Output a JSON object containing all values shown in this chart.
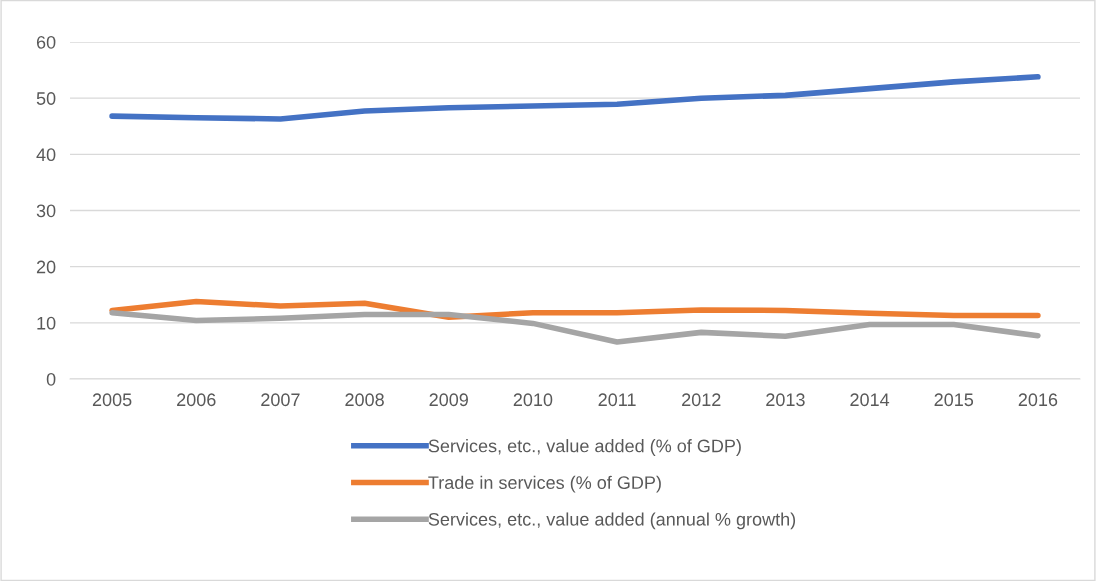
{
  "chart_data": {
    "type": "line",
    "categories": [
      "2005",
      "2006",
      "2007",
      "2008",
      "2009",
      "2010",
      "2011",
      "2012",
      "2013",
      "2014",
      "2015",
      "2016"
    ],
    "series": [
      {
        "name": "Services, etc., value added (% of GDP)",
        "color": "#4472c4",
        "values": [
          46.8,
          46.5,
          46.3,
          47.7,
          48.3,
          48.6,
          48.9,
          50.0,
          50.5,
          51.7,
          52.9,
          53.8
        ]
      },
      {
        "name": "Trade in services (% of GDP)",
        "color": "#ed7d31",
        "values": [
          12.2,
          13.8,
          13.0,
          13.5,
          11.0,
          11.8,
          11.8,
          12.3,
          12.2,
          11.7,
          11.3,
          11.3
        ]
      },
      {
        "name": "Services, etc., value added (annual % growth)",
        "color": "#a5a5a5",
        "values": [
          11.8,
          10.4,
          10.8,
          11.5,
          11.5,
          9.9,
          6.6,
          8.3,
          7.6,
          9.7,
          9.7,
          7.7
        ]
      }
    ],
    "ylim": [
      0,
      60
    ],
    "yticks": [
      0,
      10,
      20,
      30,
      40,
      50,
      60
    ],
    "grid": "y",
    "legend": "bottom",
    "marker": "none",
    "line_style": "solid"
  }
}
